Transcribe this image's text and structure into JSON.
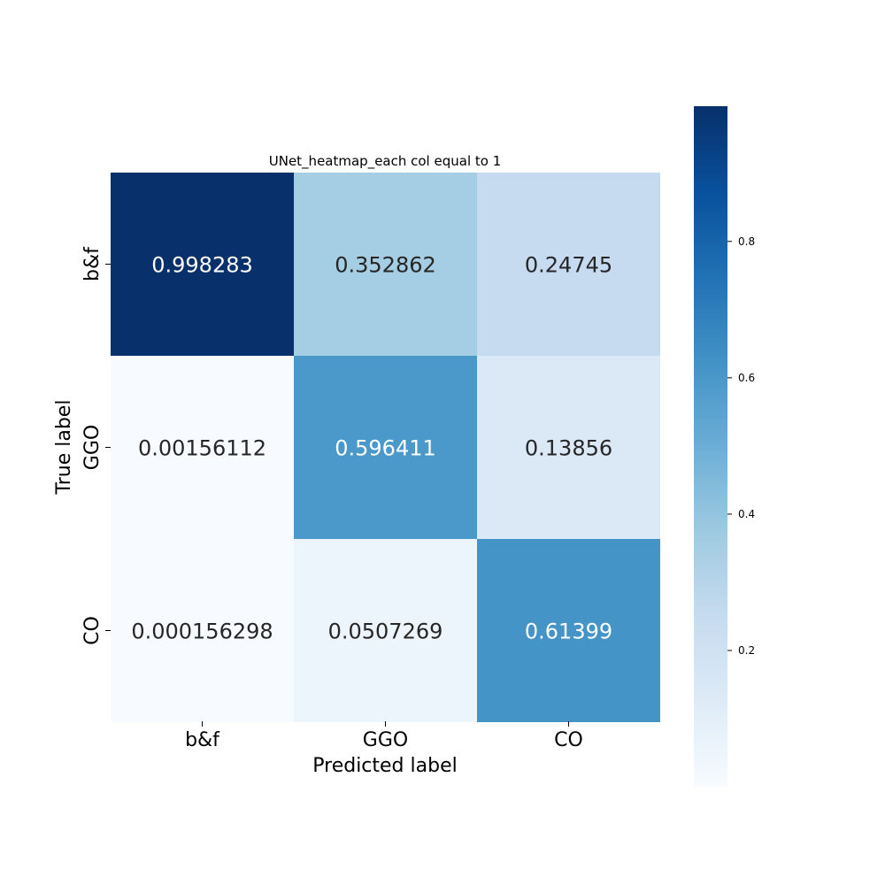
{
  "chart_data": {
    "type": "heatmap",
    "title": "UNet_heatmap_each col equal to 1",
    "xlabel": "Predicted label",
    "ylabel": "True label",
    "x_categories": [
      "b&f",
      "GGO",
      "CO"
    ],
    "y_categories": [
      "b&f",
      "GGO",
      "CO"
    ],
    "values": [
      [
        0.998283,
        0.352862,
        0.24745
      ],
      [
        0.00156112,
        0.596411,
        0.13856
      ],
      [
        0.000156298,
        0.0507269,
        0.61399
      ]
    ],
    "value_labels": [
      [
        "0.998283",
        "0.352862",
        "0.24745"
      ],
      [
        "0.00156112",
        "0.596411",
        "0.13856"
      ],
      [
        "0.000156298",
        "0.0507269",
        "0.61399"
      ]
    ],
    "colormap": "Blues",
    "vmin": 0.000156298,
    "vmax": 0.998283,
    "colorbar_ticks": [
      0.2,
      0.4,
      0.6,
      0.8
    ],
    "colorbar_tick_labels": [
      "0.2",
      "0.4",
      "0.6",
      "0.8"
    ]
  },
  "colors": {
    "text_dark": "#262626",
    "text_light": "#ffffff"
  }
}
